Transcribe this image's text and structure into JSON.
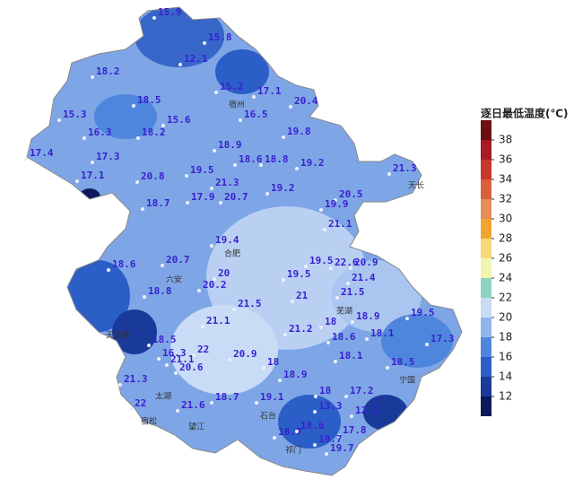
{
  "legend": {
    "title": "逐日最低温度(℃)",
    "ticks": [
      38,
      36,
      34,
      32,
      30,
      28,
      26,
      24,
      22,
      20,
      18,
      16,
      14,
      12
    ],
    "colors": [
      "#6b0f12",
      "#a51c22",
      "#c63a2c",
      "#d9603a",
      "#e98a5a",
      "#f2a431",
      "#f7d87a",
      "#f1f5b0",
      "#8ed3c0",
      "#c8dcf5",
      "#8fb6ea",
      "#4f86dd",
      "#2c5ec8",
      "#1a3a9a",
      "#0b1a5c"
    ]
  },
  "stations": [
    15.9,
    15.8,
    12.1,
    18.2,
    18.5,
    15.2,
    17.1,
    20.4,
    15.3,
    16.3,
    15.6,
    18.2,
    16.5,
    19.8,
    17.4,
    17.3,
    18.9,
    18.6,
    18.8,
    19.2,
    21.3,
    17.1,
    20.8,
    19.5,
    21.3,
    19.2,
    20.5,
    18.7,
    17.9,
    20.7,
    19.9,
    21.1,
    19.4,
    20.7,
    19.5,
    20,
    18.6,
    19.5,
    22.6,
    20.9,
    21.4,
    20.2,
    18.8,
    21.5,
    21.5,
    21,
    21.1,
    19.5,
    18.9,
    21.2,
    18,
    18.6,
    18.1,
    17.3,
    18.5,
    16.3,
    22,
    21.1,
    20.9,
    18.1,
    18.5,
    20.6,
    18,
    21.3,
    18.9,
    18.7,
    19.1,
    18,
    17.2,
    22,
    21.6,
    13.3,
    12.3,
    18.6,
    18.7,
    17.8,
    19.7,
    19.7
  ],
  "places": [
    "宿州",
    "合肥",
    "六安",
    "芜湖",
    "天堂寨",
    "天长",
    "宁国",
    "石台",
    "祁门",
    "太湖",
    "宿松",
    "望江"
  ]
}
